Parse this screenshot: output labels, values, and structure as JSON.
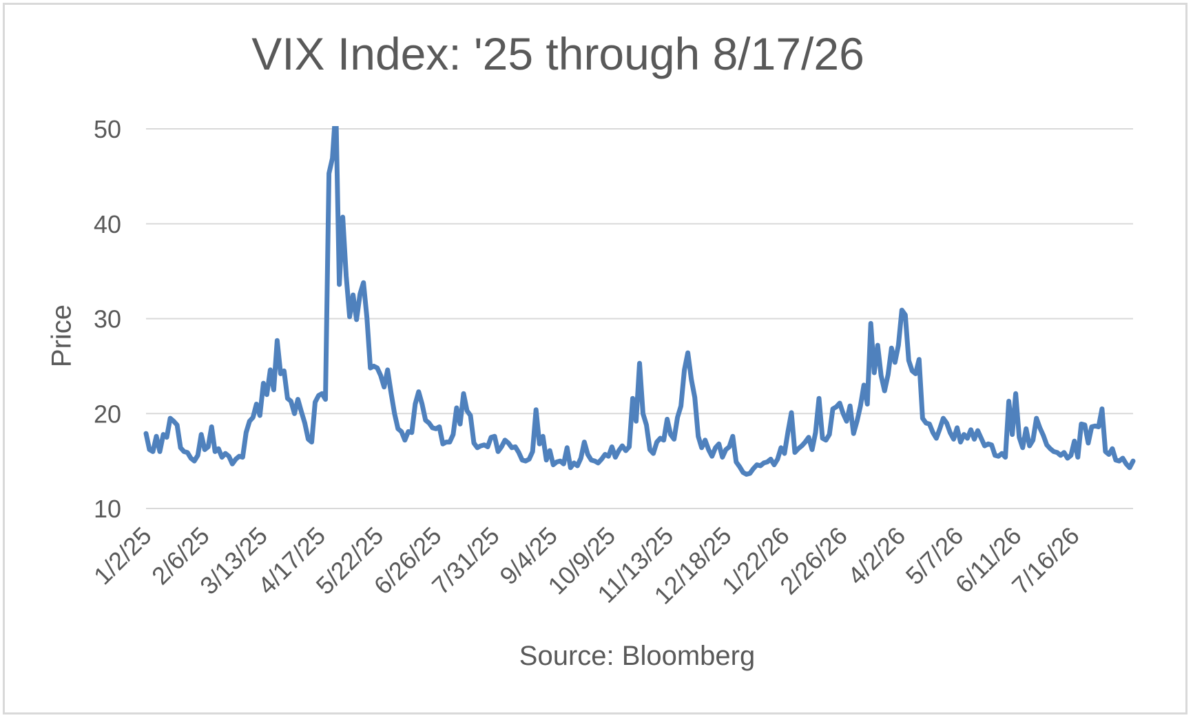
{
  "chart_data": {
    "type": "line",
    "title": "VIX Index: '25 through 8/17/26",
    "xlabel": "Source: Bloomberg",
    "ylabel": "Price",
    "ylim": [
      10,
      50
    ],
    "yticks": [
      10,
      20,
      30,
      40,
      50
    ],
    "grid": true,
    "legend": "none",
    "line_color": "#4f81bd",
    "xtick_labels": [
      "1/2/25",
      "2/6/25",
      "3/13/25",
      "4/17/25",
      "5/22/25",
      "6/26/25",
      "7/31/25",
      "9/4/25",
      "10/9/25",
      "11/13/25",
      "12/18/25",
      "1/22/26",
      "2/26/26",
      "4/2/26",
      "5/7/26",
      "6/11/26",
      "7/16/26"
    ],
    "series": [
      {
        "values": [
          17.9,
          16.2,
          16.0,
          17.6,
          16.0,
          17.8,
          17.5,
          19.5,
          19.2,
          18.8,
          16.4,
          16.0,
          15.9,
          15.3,
          15.0,
          15.6,
          17.8,
          16.2,
          16.5,
          18.6,
          16.0,
          16.3,
          15.4,
          15.8,
          15.5,
          14.7,
          15.2,
          15.5,
          15.4,
          18.0,
          19.2,
          19.6,
          21.0,
          19.8,
          23.2,
          22.0,
          24.6,
          22.5,
          27.7,
          24.2,
          24.5,
          21.6,
          21.3,
          20.0,
          21.5,
          20.2,
          19.0,
          17.3,
          17.0,
          21.2,
          21.9,
          22.1,
          21.5,
          45.3,
          46.9,
          52.3,
          33.6,
          40.7,
          34.5,
          30.2,
          32.5,
          29.9,
          32.6,
          33.8,
          30.1,
          24.8,
          25.0,
          24.8,
          24.0,
          22.8,
          24.6,
          22.2,
          20.0,
          18.4,
          18.1,
          17.2,
          18.1,
          18.0,
          21.0,
          22.3,
          21.0,
          19.3,
          19.0,
          18.5,
          18.4,
          18.6,
          16.8,
          17.0,
          17.0,
          17.8,
          20.6,
          18.9,
          22.1,
          20.3,
          19.8,
          16.9,
          16.4,
          16.6,
          16.7,
          16.5,
          17.5,
          17.6,
          16.0,
          16.5,
          17.2,
          16.9,
          16.4,
          16.5,
          15.9,
          15.1,
          15.0,
          15.2,
          16.0,
          20.4,
          16.8,
          17.6,
          15.1,
          16.1,
          14.6,
          14.9,
          15.0,
          14.7,
          16.4,
          14.3,
          14.8,
          14.5,
          15.3,
          17.0,
          15.7,
          15.1,
          15.0,
          14.8,
          15.2,
          15.7,
          15.5,
          16.5,
          15.4,
          16.1,
          16.6,
          16.1,
          16.5,
          21.6,
          19.2,
          25.3,
          20.0,
          18.8,
          16.2,
          15.8,
          17.0,
          17.4,
          17.2,
          19.4,
          17.8,
          17.3,
          19.6,
          20.8,
          24.6,
          26.4,
          23.6,
          21.7,
          17.6,
          16.4,
          17.2,
          16.2,
          15.5,
          16.4,
          16.8,
          15.4,
          16.2,
          16.5,
          17.6,
          14.9,
          14.4,
          13.8,
          13.6,
          13.7,
          14.2,
          14.6,
          14.5,
          14.8,
          14.9,
          15.2,
          14.6,
          15.2,
          16.4,
          15.8,
          18.1,
          20.1,
          15.9,
          16.3,
          16.6,
          17.0,
          17.5,
          16.2,
          18.0,
          21.6,
          17.4,
          17.2,
          17.8,
          20.5,
          20.7,
          21.1,
          20.0,
          19.2,
          20.8,
          17.9,
          19.2,
          20.8,
          23.0,
          21.0,
          29.5,
          24.3,
          27.2,
          24.0,
          22.4,
          24.1,
          26.9,
          25.4,
          27.2,
          30.9,
          30.4,
          25.6,
          24.5,
          24.2,
          25.7,
          19.5,
          19.0,
          18.9,
          18.0,
          17.4,
          18.4,
          19.5,
          19.0,
          18.0,
          17.3,
          18.5,
          17.0,
          17.8,
          17.4,
          18.3,
          17.3,
          18.2,
          17.4,
          16.6,
          16.8,
          16.7,
          15.6,
          15.5,
          15.8,
          15.4,
          21.3,
          17.8,
          22.1,
          17.5,
          16.4,
          18.4,
          16.6,
          17.2,
          19.5,
          18.5,
          17.7,
          16.7,
          16.3,
          16.0,
          15.9,
          15.6,
          15.9,
          15.3,
          15.6,
          17.1,
          15.4,
          18.9,
          18.8,
          16.9,
          18.6,
          18.7,
          18.6,
          20.5,
          16.0,
          15.7,
          16.3,
          15.1,
          15.0,
          15.3,
          14.7,
          14.3,
          15.0
        ]
      }
    ]
  }
}
